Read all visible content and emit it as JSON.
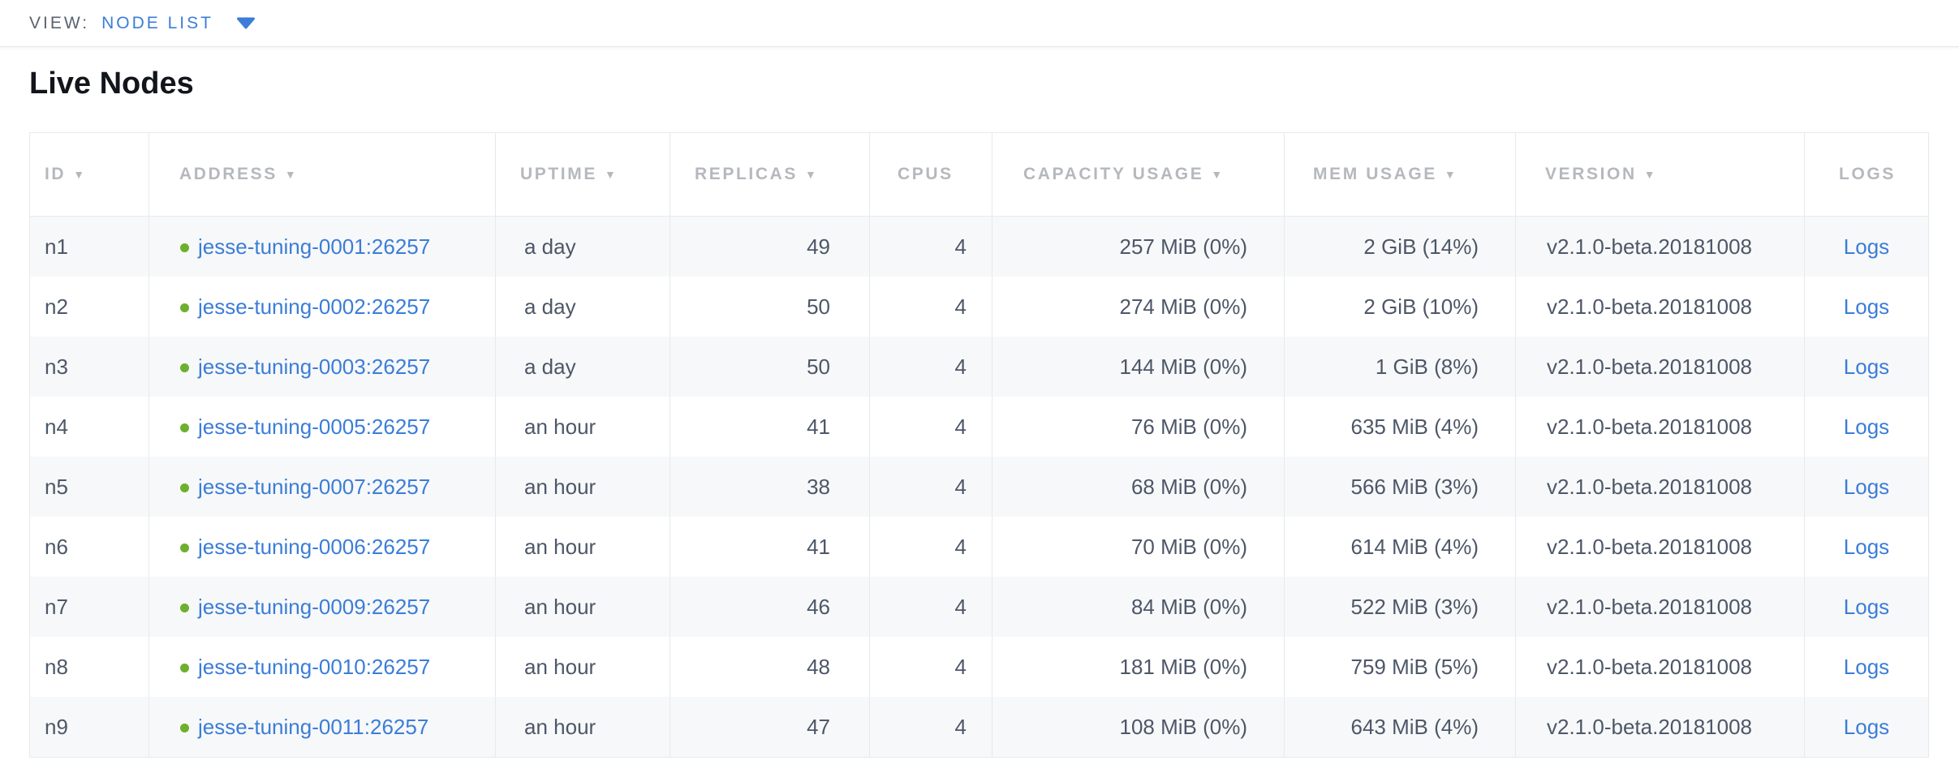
{
  "view_bar": {
    "label": "VIEW:",
    "selected": "NODE LIST"
  },
  "page": {
    "title": "Live Nodes"
  },
  "table": {
    "columns": [
      {
        "key": "id",
        "label": "ID",
        "sortable": true
      },
      {
        "key": "address",
        "label": "ADDRESS",
        "sortable": true
      },
      {
        "key": "uptime",
        "label": "UPTIME",
        "sortable": true
      },
      {
        "key": "replicas",
        "label": "REPLICAS",
        "sortable": true
      },
      {
        "key": "cpus",
        "label": "CPUS",
        "sortable": false
      },
      {
        "key": "capacity",
        "label": "CAPACITY USAGE",
        "sortable": true
      },
      {
        "key": "mem",
        "label": "MEM USAGE",
        "sortable": true
      },
      {
        "key": "version",
        "label": "VERSION",
        "sortable": true
      },
      {
        "key": "logs",
        "label": "LOGS",
        "sortable": false
      }
    ],
    "rows": [
      {
        "id": "n1",
        "address": "jesse-tuning-0001:26257",
        "uptime": "a day",
        "replicas": "49",
        "cpus": "4",
        "capacity": "257 MiB (0%)",
        "mem": "2 GiB (14%)",
        "version": "v2.1.0-beta.20181008",
        "logs": "Logs"
      },
      {
        "id": "n2",
        "address": "jesse-tuning-0002:26257",
        "uptime": "a day",
        "replicas": "50",
        "cpus": "4",
        "capacity": "274 MiB (0%)",
        "mem": "2 GiB (10%)",
        "version": "v2.1.0-beta.20181008",
        "logs": "Logs"
      },
      {
        "id": "n3",
        "address": "jesse-tuning-0003:26257",
        "uptime": "a day",
        "replicas": "50",
        "cpus": "4",
        "capacity": "144 MiB (0%)",
        "mem": "1 GiB (8%)",
        "version": "v2.1.0-beta.20181008",
        "logs": "Logs"
      },
      {
        "id": "n4",
        "address": "jesse-tuning-0005:26257",
        "uptime": "an hour",
        "replicas": "41",
        "cpus": "4",
        "capacity": "76 MiB (0%)",
        "mem": "635 MiB (4%)",
        "version": "v2.1.0-beta.20181008",
        "logs": "Logs"
      },
      {
        "id": "n5",
        "address": "jesse-tuning-0007:26257",
        "uptime": "an hour",
        "replicas": "38",
        "cpus": "4",
        "capacity": "68 MiB (0%)",
        "mem": "566 MiB (3%)",
        "version": "v2.1.0-beta.20181008",
        "logs": "Logs"
      },
      {
        "id": "n6",
        "address": "jesse-tuning-0006:26257",
        "uptime": "an hour",
        "replicas": "41",
        "cpus": "4",
        "capacity": "70 MiB (0%)",
        "mem": "614 MiB (4%)",
        "version": "v2.1.0-beta.20181008",
        "logs": "Logs"
      },
      {
        "id": "n7",
        "address": "jesse-tuning-0009:26257",
        "uptime": "an hour",
        "replicas": "46",
        "cpus": "4",
        "capacity": "84 MiB (0%)",
        "mem": "522 MiB (3%)",
        "version": "v2.1.0-beta.20181008",
        "logs": "Logs"
      },
      {
        "id": "n8",
        "address": "jesse-tuning-0010:26257",
        "uptime": "an hour",
        "replicas": "48",
        "cpus": "4",
        "capacity": "181 MiB (0%)",
        "mem": "759 MiB (5%)",
        "version": "v2.1.0-beta.20181008",
        "logs": "Logs"
      },
      {
        "id": "n9",
        "address": "jesse-tuning-0011:26257",
        "uptime": "an hour",
        "replicas": "47",
        "cpus": "4",
        "capacity": "108 MiB (0%)",
        "mem": "643 MiB (4%)",
        "version": "v2.1.0-beta.20181008",
        "logs": "Logs"
      }
    ]
  },
  "colors": {
    "accent_blue": "#3b7dd8",
    "status_green": "#6cb02e",
    "header_gray": "#b5b8bd",
    "row_stripe": "#f7f8f9"
  }
}
